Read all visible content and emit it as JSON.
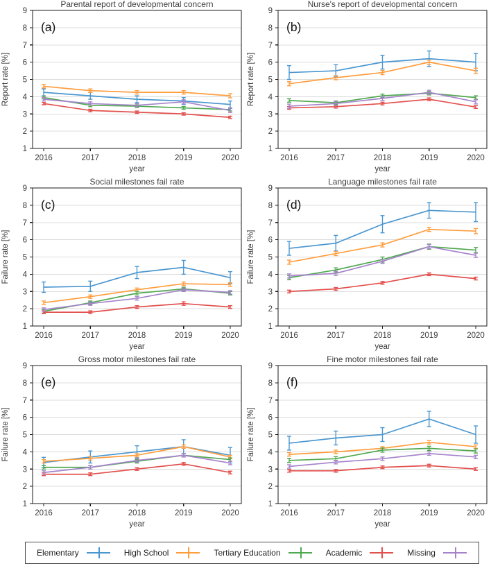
{
  "page": {
    "background": "#ffffff",
    "type_description": "2x3 grid of errorbar line charts, shared legend at bottom"
  },
  "colors": {
    "elementary": "#4a96cf",
    "high_school": "#ff9d3d",
    "tertiary": "#4fa84f",
    "academic": "#e2504d",
    "missing": "#a583cb",
    "grid": "#dcdcdc",
    "spine": "#1a1a1a",
    "text": "#3a3a3a",
    "title": "#404040"
  },
  "legend": {
    "entries": [
      {
        "label": "Elementary",
        "color_key": "elementary"
      },
      {
        "label": "High School",
        "color_key": "high_school"
      },
      {
        "label": "Tertiary Education",
        "color_key": "tertiary"
      },
      {
        "label": "Academic",
        "color_key": "academic"
      },
      {
        "label": "Missing",
        "color_key": "missing"
      }
    ]
  },
  "chart_data": [
    {
      "type": "line",
      "panel_label": "(a)",
      "title": "Parental report of developmental concern",
      "xlabel": "year",
      "ylabel": "Report rate [%]",
      "x": [
        2016,
        2017,
        2018,
        2019,
        2020
      ],
      "ylim": [
        1,
        9
      ],
      "yticks": [
        1,
        2,
        3,
        4,
        5,
        6,
        7,
        8,
        9
      ],
      "grid": "horizontal",
      "series": [
        {
          "name": "Elementary",
          "color_key": "elementary",
          "values": [
            4.25,
            4.05,
            3.85,
            3.75,
            3.55
          ],
          "yerr": [
            0.2,
            0.2,
            0.2,
            0.2,
            0.2
          ]
        },
        {
          "name": "High School",
          "color_key": "high_school",
          "values": [
            4.6,
            4.35,
            4.25,
            4.25,
            4.05
          ],
          "yerr": [
            0.1,
            0.1,
            0.1,
            0.1,
            0.12
          ]
        },
        {
          "name": "Tertiary Education",
          "color_key": "tertiary",
          "values": [
            3.95,
            3.5,
            3.45,
            3.35,
            3.25
          ],
          "yerr": [
            0.08,
            0.08,
            0.08,
            0.08,
            0.08
          ]
        },
        {
          "name": "Academic",
          "color_key": "academic",
          "values": [
            3.6,
            3.2,
            3.1,
            3.0,
            2.8
          ],
          "yerr": [
            0.07,
            0.07,
            0.07,
            0.07,
            0.07
          ]
        },
        {
          "name": "Missing",
          "color_key": "missing",
          "values": [
            3.85,
            3.6,
            3.5,
            3.7,
            3.2
          ],
          "yerr": [
            0.1,
            0.1,
            0.1,
            0.12,
            0.12
          ]
        }
      ]
    },
    {
      "type": "line",
      "panel_label": "(b)",
      "title": "Nurse's report of developmental concern",
      "xlabel": "year",
      "ylabel": "Report rate [%]",
      "x": [
        2016,
        2017,
        2018,
        2019,
        2020
      ],
      "ylim": [
        1,
        9
      ],
      "yticks": [
        1,
        2,
        3,
        4,
        5,
        6,
        7,
        8,
        9
      ],
      "grid": "horizontal",
      "series": [
        {
          "name": "Elementary",
          "color_key": "elementary",
          "values": [
            5.4,
            5.5,
            6.0,
            6.2,
            6.0
          ],
          "yerr": [
            0.4,
            0.35,
            0.4,
            0.45,
            0.5
          ]
        },
        {
          "name": "High School",
          "color_key": "high_school",
          "values": [
            4.75,
            5.1,
            5.4,
            6.0,
            5.5
          ],
          "yerr": [
            0.12,
            0.12,
            0.12,
            0.12,
            0.15
          ]
        },
        {
          "name": "Tertiary Education",
          "color_key": "tertiary",
          "values": [
            3.78,
            3.65,
            4.05,
            4.2,
            3.95
          ],
          "yerr": [
            0.1,
            0.1,
            0.1,
            0.1,
            0.1
          ]
        },
        {
          "name": "Academic",
          "color_key": "academic",
          "values": [
            3.35,
            3.42,
            3.6,
            3.85,
            3.4
          ],
          "yerr": [
            0.08,
            0.08,
            0.08,
            0.08,
            0.08
          ]
        },
        {
          "name": "Missing",
          "color_key": "missing",
          "values": [
            3.45,
            3.6,
            3.9,
            4.25,
            3.7
          ],
          "yerr": [
            0.12,
            0.12,
            0.12,
            0.12,
            0.12
          ]
        }
      ]
    },
    {
      "type": "line",
      "panel_label": "(c)",
      "title": "Social milestones fail rate",
      "xlabel": "year",
      "ylabel": "Failure rate [%]",
      "x": [
        2016,
        2017,
        2018,
        2019,
        2020
      ],
      "ylim": [
        1,
        9
      ],
      "yticks": [
        1,
        2,
        3,
        4,
        5,
        6,
        7,
        8,
        9
      ],
      "grid": "horizontal",
      "series": [
        {
          "name": "Elementary",
          "color_key": "elementary",
          "values": [
            3.25,
            3.3,
            4.1,
            4.4,
            3.8
          ],
          "yerr": [
            0.3,
            0.3,
            0.35,
            0.4,
            0.35
          ]
        },
        {
          "name": "High School",
          "color_key": "high_school",
          "values": [
            2.35,
            2.7,
            3.1,
            3.45,
            3.4
          ],
          "yerr": [
            0.1,
            0.1,
            0.1,
            0.1,
            0.1
          ]
        },
        {
          "name": "Tertiary Education",
          "color_key": "tertiary",
          "values": [
            1.85,
            2.35,
            2.9,
            3.15,
            2.9
          ],
          "yerr": [
            0.1,
            0.1,
            0.1,
            0.1,
            0.1
          ]
        },
        {
          "name": "Academic",
          "color_key": "academic",
          "values": [
            1.8,
            1.8,
            2.1,
            2.3,
            2.1
          ],
          "yerr": [
            0.08,
            0.08,
            0.08,
            0.1,
            0.08
          ]
        },
        {
          "name": "Missing",
          "color_key": "missing",
          "values": [
            1.95,
            2.3,
            2.6,
            3.1,
            2.95
          ],
          "yerr": [
            0.1,
            0.1,
            0.1,
            0.1,
            0.1
          ]
        }
      ]
    },
    {
      "type": "line",
      "panel_label": "(d)",
      "title": "Language milestones fail rate",
      "xlabel": "year",
      "ylabel": "Failure rate [%]",
      "x": [
        2016,
        2017,
        2018,
        2019,
        2020
      ],
      "ylim": [
        1,
        9
      ],
      "yticks": [
        1,
        2,
        3,
        4,
        5,
        6,
        7,
        8,
        9
      ],
      "grid": "horizontal",
      "series": [
        {
          "name": "Elementary",
          "color_key": "elementary",
          "values": [
            5.5,
            5.8,
            6.9,
            7.7,
            7.6
          ],
          "yerr": [
            0.4,
            0.45,
            0.5,
            0.45,
            0.55
          ]
        },
        {
          "name": "High School",
          "color_key": "high_school",
          "values": [
            4.7,
            5.2,
            5.7,
            6.6,
            6.5
          ],
          "yerr": [
            0.12,
            0.12,
            0.12,
            0.12,
            0.15
          ]
        },
        {
          "name": "Tertiary Education",
          "color_key": "tertiary",
          "values": [
            3.8,
            4.25,
            4.85,
            5.6,
            5.4
          ],
          "yerr": [
            0.12,
            0.12,
            0.15,
            0.15,
            0.15
          ]
        },
        {
          "name": "Academic",
          "color_key": "academic",
          "values": [
            3.0,
            3.15,
            3.5,
            4.0,
            3.75
          ],
          "yerr": [
            0.08,
            0.08,
            0.08,
            0.08,
            0.08
          ]
        },
        {
          "name": "Missing",
          "color_key": "missing",
          "values": [
            3.9,
            4.05,
            4.75,
            5.6,
            5.1
          ],
          "yerr": [
            0.12,
            0.12,
            0.12,
            0.12,
            0.12
          ]
        }
      ]
    },
    {
      "type": "line",
      "panel_label": "(e)",
      "title": "Gross motor milestones fail rate",
      "xlabel": "year",
      "ylabel": "Failure rate [%]",
      "x": [
        2016,
        2017,
        2018,
        2019,
        2020
      ],
      "ylim": [
        1,
        9
      ],
      "yticks": [
        1,
        2,
        3,
        4,
        5,
        6,
        7,
        8,
        9
      ],
      "grid": "horizontal",
      "series": [
        {
          "name": "Elementary",
          "color_key": "elementary",
          "values": [
            3.38,
            3.7,
            4.0,
            4.3,
            3.8
          ],
          "yerr": [
            0.3,
            0.35,
            0.35,
            0.4,
            0.45
          ]
        },
        {
          "name": "High School",
          "color_key": "high_school",
          "values": [
            3.45,
            3.62,
            3.8,
            4.3,
            3.7
          ],
          "yerr": [
            0.1,
            0.1,
            0.1,
            0.1,
            0.1
          ]
        },
        {
          "name": "Tertiary Education",
          "color_key": "tertiary",
          "values": [
            3.1,
            3.1,
            3.45,
            3.8,
            3.55
          ],
          "yerr": [
            0.1,
            0.1,
            0.1,
            0.1,
            0.1
          ]
        },
        {
          "name": "Academic",
          "color_key": "academic",
          "values": [
            2.7,
            2.7,
            3.0,
            3.3,
            2.8
          ],
          "yerr": [
            0.08,
            0.08,
            0.08,
            0.08,
            0.08
          ]
        },
        {
          "name": "Missing",
          "color_key": "missing",
          "values": [
            2.8,
            3.1,
            3.5,
            3.8,
            3.35
          ],
          "yerr": [
            0.1,
            0.1,
            0.1,
            0.1,
            0.1
          ]
        }
      ]
    },
    {
      "type": "line",
      "panel_label": "(f)",
      "title": "Fine motor milestones fail rate",
      "xlabel": "year",
      "ylabel": "Failure rate [%]",
      "x": [
        2016,
        2017,
        2018,
        2019,
        2020
      ],
      "ylim": [
        1,
        9
      ],
      "yticks": [
        1,
        2,
        3,
        4,
        5,
        6,
        7,
        8,
        9
      ],
      "grid": "horizontal",
      "series": [
        {
          "name": "Elementary",
          "color_key": "elementary",
          "values": [
            4.5,
            4.8,
            5.0,
            5.9,
            5.0
          ],
          "yerr": [
            0.4,
            0.4,
            0.4,
            0.45,
            0.5
          ]
        },
        {
          "name": "High School",
          "color_key": "high_school",
          "values": [
            3.85,
            4.0,
            4.2,
            4.55,
            4.3
          ],
          "yerr": [
            0.1,
            0.1,
            0.1,
            0.1,
            0.1
          ]
        },
        {
          "name": "Tertiary Education",
          "color_key": "tertiary",
          "values": [
            3.5,
            3.6,
            4.1,
            4.2,
            4.05
          ],
          "yerr": [
            0.12,
            0.12,
            0.12,
            0.12,
            0.12
          ]
        },
        {
          "name": "Academic",
          "color_key": "academic",
          "values": [
            2.9,
            2.9,
            3.1,
            3.2,
            3.0
          ],
          "yerr": [
            0.08,
            0.08,
            0.08,
            0.08,
            0.08
          ]
        },
        {
          "name": "Missing",
          "color_key": "missing",
          "values": [
            3.15,
            3.4,
            3.6,
            3.9,
            3.7
          ],
          "yerr": [
            0.1,
            0.1,
            0.1,
            0.1,
            0.1
          ]
        }
      ]
    }
  ]
}
